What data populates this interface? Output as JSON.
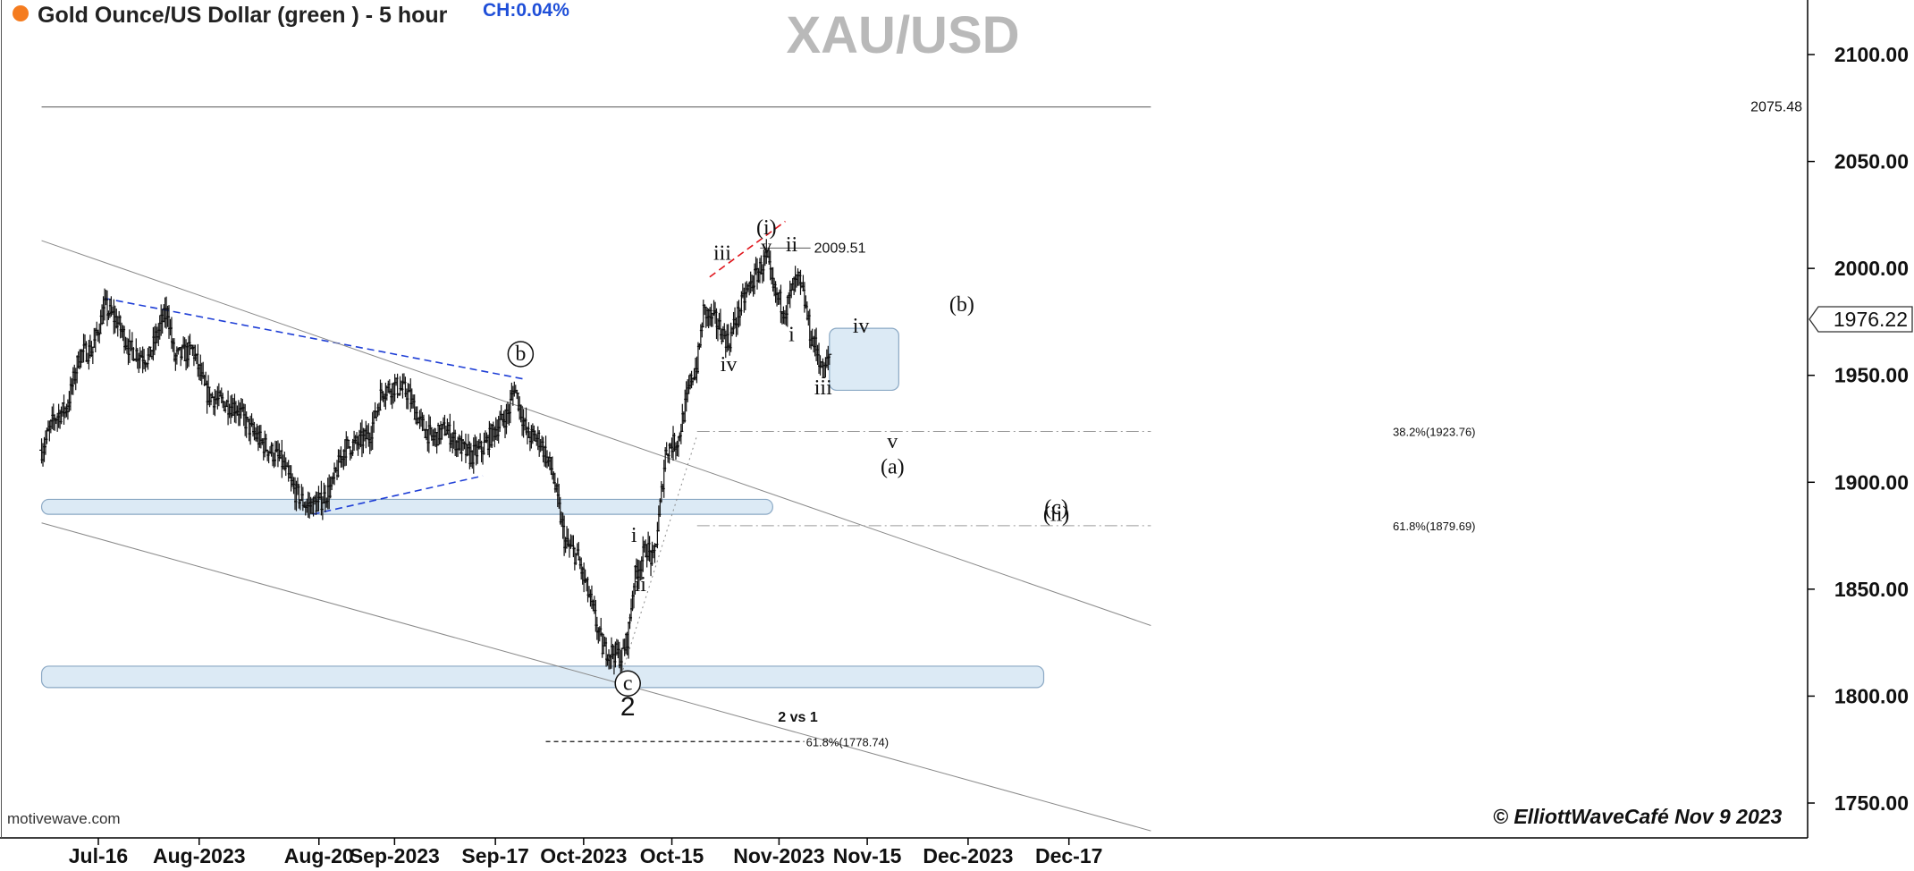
{
  "header": {
    "title": "Gold Ounce/US Dollar (green ) - 5 hour",
    "change": "CH:0.04%",
    "symbol_watermark": "XAU/USD",
    "indicator_color": "#f57c1f"
  },
  "footer": {
    "source": "motivewave.com",
    "copyright": "© ElliottWaveCafé Nov 9 2023"
  },
  "colors": {
    "candles": "#111111",
    "zone_fill": "#dceaf5",
    "zone_stroke": "#8aa8c4",
    "trend_blue": "#1f3fd6",
    "trend_red": "#e0141b",
    "axis": "#000000"
  },
  "chart_data": {
    "type": "candlestick",
    "instrument": "XAU/USD",
    "timeframe": "5 hour",
    "y_axis": {
      "ticks": [
        2100,
        2050,
        2000,
        1950,
        1900,
        1850,
        1800,
        1750
      ],
      "tick_labels": [
        "2100.00",
        "2050.00",
        "2000.00",
        "1950.00",
        "1900.00",
        "1850.00",
        "1800.00",
        "1750.00"
      ],
      "range": [
        1734,
        2123
      ]
    },
    "x_axis": {
      "labels": [
        "Jul-16",
        "Aug-2023",
        "Aug-20",
        "Sep-2023",
        "Sep-17",
        "Oct-2023",
        "Oct-15",
        "Nov-2023",
        "Nov-15",
        "Dec-2023",
        "Dec-17"
      ],
      "dates": [
        "2023-07-16",
        "2023-08-01",
        "2023-08-20",
        "2023-09-01",
        "2023-09-17",
        "2023-10-01",
        "2023-10-15",
        "2023-11-01",
        "2023-11-15",
        "2023-12-01",
        "2023-12-17"
      ]
    },
    "current_price": {
      "label": "1976.22",
      "value": 1976.22
    },
    "levels": [
      {
        "label": "2075.48",
        "value": 2075.48,
        "style": "solid",
        "from": "2023-07-07",
        "to": "2023-12-30"
      },
      {
        "label": "2009.51",
        "value": 2009.51,
        "style": "solid",
        "from": "2023-10-29",
        "to": "2023-11-06"
      },
      {
        "label": "38.2%(1923.76)",
        "value": 1923.76,
        "style": "dashdot",
        "from": "2023-10-19",
        "to": "2023-12-30"
      },
      {
        "label": "61.8%(1879.69)",
        "value": 1879.69,
        "style": "dashdot",
        "from": "2023-10-19",
        "to": "2023-12-30"
      },
      {
        "label": "61.8%(1778.74)",
        "value": 1778.74,
        "style": "dashed",
        "from": "2023-09-25",
        "to": "2023-11-05"
      }
    ],
    "zones": [
      {
        "from": "2023-07-07",
        "to": "2023-10-31",
        "low": 1885,
        "high": 1892
      },
      {
        "from": "2023-07-07",
        "to": "2023-12-13",
        "low": 1804,
        "high": 1814
      },
      {
        "from": "2023-11-09",
        "to": "2023-11-20",
        "low": 1943,
        "high": 1972
      }
    ],
    "trendlines": [
      {
        "color": "blue",
        "style": "dashed",
        "points": [
          [
            "2023-07-17",
            1986
          ],
          [
            "2023-09-22",
            1948
          ]
        ]
      },
      {
        "color": "blue",
        "style": "dashed",
        "points": [
          [
            "2023-08-19",
            1885
          ],
          [
            "2023-09-15",
            1903
          ]
        ]
      },
      {
        "color": "red",
        "style": "dashed",
        "points": [
          [
            "2023-10-21",
            1996
          ],
          [
            "2023-11-02",
            2022
          ]
        ]
      },
      {
        "color": "gray",
        "style": "solid",
        "points": [
          [
            "2023-07-07",
            2013
          ],
          [
            "2023-12-30",
            1833
          ]
        ]
      },
      {
        "color": "gray",
        "style": "solid",
        "points": [
          [
            "2023-07-07",
            1881
          ],
          [
            "2023-12-30",
            1737
          ]
        ]
      },
      {
        "color": "gray",
        "style": "dotted",
        "points": [
          [
            "2023-10-07",
            1810
          ],
          [
            "2023-10-19",
            1922
          ]
        ]
      }
    ],
    "wave_labels": [
      {
        "text": "(i)",
        "date": "2023-10-30",
        "price": 2016
      },
      {
        "text": "v",
        "date": "2023-10-30",
        "price": 2007
      },
      {
        "text": "ii",
        "date": "2023-11-03",
        "price": 2008
      },
      {
        "text": "iii",
        "date": "2023-10-23",
        "price": 2004
      },
      {
        "text": "iv",
        "date": "2023-10-24",
        "price": 1952
      },
      {
        "text": "i",
        "date": "2023-11-03",
        "price": 1966
      },
      {
        "text": "iii",
        "date": "2023-11-08",
        "price": 1941
      },
      {
        "text": "iv",
        "date": "2023-11-14",
        "price": 1970
      },
      {
        "text": "(b)",
        "date": "2023-11-30",
        "price": 1980
      },
      {
        "text": "v",
        "date": "2023-11-19",
        "price": 1916
      },
      {
        "text": "(a)",
        "date": "2023-11-19",
        "price": 1904
      },
      {
        "text": "(c)",
        "date": "2023-12-15",
        "price": 1885
      },
      {
        "text": "(ii)",
        "date": "2023-12-15",
        "price": 1882
      },
      {
        "text": "b",
        "date": "2023-09-21",
        "price": 1957,
        "circled": true
      },
      {
        "text": "c",
        "date": "2023-10-08",
        "price": 1803,
        "circled": true
      },
      {
        "text": "2",
        "date": "2023-10-08",
        "price": 1791
      },
      {
        "text": "i",
        "date": "2023-10-09",
        "price": 1872
      },
      {
        "text": "ii",
        "date": "2023-10-10",
        "price": 1849
      },
      {
        "text": "2 vs 1",
        "date": "2023-11-04",
        "price": 1788
      }
    ],
    "price_path": [
      [
        "2023-07-07",
        1915
      ],
      [
        "2023-07-09",
        1930
      ],
      [
        "2023-07-11",
        1935
      ],
      [
        "2023-07-13",
        1960
      ],
      [
        "2023-07-15",
        1962
      ],
      [
        "2023-07-17",
        1982
      ],
      [
        "2023-07-19",
        1975
      ],
      [
        "2023-07-21",
        1962
      ],
      [
        "2023-07-24",
        1958
      ],
      [
        "2023-07-26",
        1975
      ],
      [
        "2023-07-27",
        1980
      ],
      [
        "2023-07-28",
        1958
      ],
      [
        "2023-07-31",
        1962
      ],
      [
        "2023-08-02",
        1942
      ],
      [
        "2023-08-04",
        1938
      ],
      [
        "2023-08-07",
        1935
      ],
      [
        "2023-08-09",
        1925
      ],
      [
        "2023-08-11",
        1918
      ],
      [
        "2023-08-14",
        1910
      ],
      [
        "2023-08-16",
        1896
      ],
      [
        "2023-08-18",
        1889
      ],
      [
        "2023-08-20",
        1890
      ],
      [
        "2023-08-22",
        1898
      ],
      [
        "2023-08-24",
        1916
      ],
      [
        "2023-08-26",
        1918
      ],
      [
        "2023-08-28",
        1922
      ],
      [
        "2023-08-30",
        1943
      ],
      [
        "2023-09-01",
        1945
      ],
      [
        "2023-09-03",
        1942
      ],
      [
        "2023-09-05",
        1928
      ],
      [
        "2023-09-07",
        1920
      ],
      [
        "2023-09-09",
        1925
      ],
      [
        "2023-09-11",
        1918
      ],
      [
        "2023-09-13",
        1912
      ],
      [
        "2023-09-15",
        1916
      ],
      [
        "2023-09-17",
        1925
      ],
      [
        "2023-09-19",
        1932
      ],
      [
        "2023-09-20",
        1945
      ],
      [
        "2023-09-22",
        1922
      ],
      [
        "2023-09-24",
        1920
      ],
      [
        "2023-09-26",
        1905
      ],
      [
        "2023-09-28",
        1872
      ],
      [
        "2023-09-30",
        1865
      ],
      [
        "2023-10-02",
        1845
      ],
      [
        "2023-10-04",
        1822
      ],
      [
        "2023-10-06",
        1820
      ],
      [
        "2023-10-07",
        1818
      ],
      [
        "2023-10-08",
        1828
      ],
      [
        "2023-10-09",
        1855
      ],
      [
        "2023-10-11",
        1870
      ],
      [
        "2023-10-12",
        1862
      ],
      [
        "2023-10-13",
        1885
      ],
      [
        "2023-10-14",
        1915
      ],
      [
        "2023-10-16",
        1920
      ],
      [
        "2023-10-18",
        1948
      ],
      [
        "2023-10-19",
        1955
      ],
      [
        "2023-10-20",
        1980
      ],
      [
        "2023-10-22",
        1975
      ],
      [
        "2023-10-24",
        1965
      ],
      [
        "2023-10-25",
        1975
      ],
      [
        "2023-10-27",
        1990
      ],
      [
        "2023-10-29",
        2000
      ],
      [
        "2023-10-30",
        2005
      ],
      [
        "2023-10-31",
        1990
      ],
      [
        "2023-11-01",
        1985
      ],
      [
        "2023-11-02",
        1980
      ],
      [
        "2023-11-03",
        1990
      ],
      [
        "2023-11-04",
        1995
      ],
      [
        "2023-11-05",
        1985
      ],
      [
        "2023-11-06",
        1968
      ],
      [
        "2023-11-07",
        1962
      ],
      [
        "2023-11-08",
        1950
      ],
      [
        "2023-11-09",
        1960
      ]
    ]
  }
}
